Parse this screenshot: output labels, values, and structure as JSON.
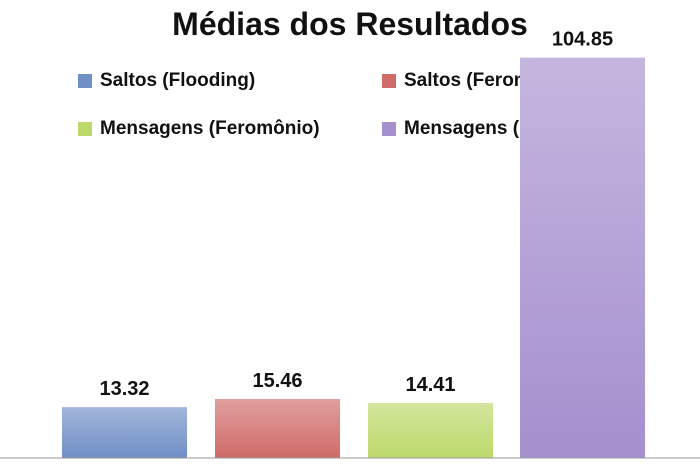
{
  "chart_data": {
    "type": "bar",
    "title": "Médias dos Resultados",
    "xlabel": "",
    "ylabel": "",
    "ylim": [
      0,
      110
    ],
    "legend_position": "top",
    "grid": false,
    "series": [
      {
        "name": "Saltos (Flooding)",
        "value": 13.32,
        "value_label": "13.32",
        "color": "#6f8fc6"
      },
      {
        "name": "Saltos (Feromônio)",
        "value": 15.46,
        "value_label": "15.46",
        "color": "#cf6b68"
      },
      {
        "name": "Mensagens (Feromônio)",
        "value": 14.41,
        "value_label": "14.41",
        "color": "#bcd96a"
      },
      {
        "name": "Mensagens (Flooding)",
        "value": 104.85,
        "value_label": "104.85",
        "color": "#a58fce"
      }
    ]
  }
}
